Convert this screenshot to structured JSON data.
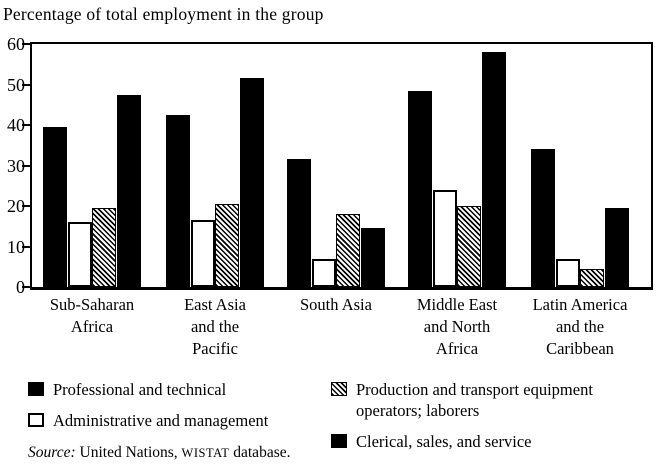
{
  "title": "Percentage of total employment in the group",
  "chart_data": {
    "type": "bar",
    "title": "Percentage of total employment in the group",
    "categories": [
      [
        "Sub-Saharan",
        "Africa"
      ],
      [
        "East Asia",
        "and the",
        "Pacific"
      ],
      [
        "South Asia"
      ],
      [
        "Middle East",
        "and North",
        "Africa"
      ],
      [
        "Latin America",
        "and the",
        "Caribbean"
      ]
    ],
    "series": [
      {
        "name": "Professional and technical",
        "pattern": "solid-black",
        "values": [
          39.5,
          42.5,
          31.5,
          48.5,
          34
        ]
      },
      {
        "name": "Administrative and management",
        "pattern": "white-outline",
        "values": [
          16,
          16.5,
          7,
          24,
          7
        ]
      },
      {
        "name": "Production and transport equipment operators; laborers",
        "pattern": "hatched",
        "values": [
          19.5,
          20.5,
          18,
          20,
          4.5
        ]
      },
      {
        "name": "Clerical, sales, and service",
        "pattern": "solid-black",
        "values": [
          47.5,
          51.5,
          14.5,
          58,
          19.5
        ]
      }
    ],
    "ylim": [
      0,
      60
    ],
    "yticks": [
      "0",
      "10",
      "20",
      "30",
      "40",
      "50",
      "60"
    ],
    "grid": false,
    "legend_position": "bottom"
  },
  "legend": {
    "columns": [
      [
        {
          "pattern": "solid-black",
          "label": "Professional and technical"
        },
        {
          "pattern": "white-outline",
          "label": "Administrative and management"
        }
      ],
      [
        {
          "pattern": "hatched",
          "label": "Production and transport equipment operators; laborers"
        },
        {
          "pattern": "solid-black",
          "label": "Clerical, sales, and service"
        }
      ]
    ]
  },
  "source": {
    "italic": "Source:",
    "text1": " United Nations, ",
    "smallcaps": "WISTAT",
    "text2": " database."
  },
  "colors": {
    "ink": "#000000",
    "paper": "#ffffff"
  }
}
